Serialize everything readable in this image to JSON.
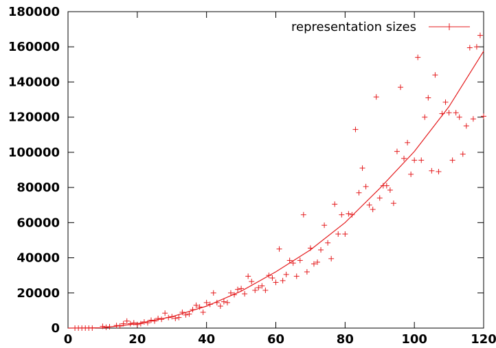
{
  "chart_data": {
    "type": "scatter",
    "title": "",
    "xlabel": "",
    "ylabel": "",
    "xlim": [
      0,
      120
    ],
    "ylim": [
      0,
      180000
    ],
    "x_ticks": [
      0,
      20,
      40,
      60,
      80,
      100,
      120
    ],
    "y_ticks": [
      0,
      20000,
      40000,
      60000,
      80000,
      100000,
      120000,
      140000,
      160000,
      180000
    ],
    "grid": false,
    "legend": {
      "placement": "top-right"
    },
    "color": "#e41a1c",
    "series": [
      {
        "name": "representation sizes",
        "marker": "+",
        "line": "fit",
        "fit_curve": {
          "x": [
            0,
            10,
            20,
            30,
            40,
            50,
            60,
            70,
            80,
            90,
            100,
            110,
            120
          ],
          "y": [
            0,
            200,
            2500,
            6500,
            12500,
            21000,
            32000,
            44500,
            60000,
            79500,
            100500,
            126000,
            157500
          ]
        },
        "points": [
          [
            2,
            0
          ],
          [
            3,
            0
          ],
          [
            4,
            0
          ],
          [
            5,
            0
          ],
          [
            6,
            0
          ],
          [
            7,
            0
          ],
          [
            10,
            1000
          ],
          [
            11,
            500
          ],
          [
            12,
            800
          ],
          [
            14,
            1500
          ],
          [
            15,
            1200
          ],
          [
            16,
            2500
          ],
          [
            17,
            4000
          ],
          [
            18,
            2500
          ],
          [
            19,
            3000
          ],
          [
            20,
            2000
          ],
          [
            21,
            2500
          ],
          [
            22,
            3500
          ],
          [
            23,
            3000
          ],
          [
            24,
            4500
          ],
          [
            25,
            4000
          ],
          [
            26,
            5500
          ],
          [
            27,
            5000
          ],
          [
            28,
            8500
          ],
          [
            29,
            6000
          ],
          [
            30,
            6500
          ],
          [
            31,
            5500
          ],
          [
            32,
            6000
          ],
          [
            33,
            9000
          ],
          [
            34,
            7500
          ],
          [
            35,
            8000
          ],
          [
            36,
            10500
          ],
          [
            37,
            13000
          ],
          [
            38,
            12000
          ],
          [
            39,
            9000
          ],
          [
            40,
            14500
          ],
          [
            41,
            13500
          ],
          [
            42,
            20000
          ],
          [
            43,
            14500
          ],
          [
            44,
            12500
          ],
          [
            45,
            15000
          ],
          [
            46,
            14500
          ],
          [
            47,
            20000
          ],
          [
            48,
            19000
          ],
          [
            49,
            22000
          ],
          [
            50,
            22500
          ],
          [
            51,
            19500
          ],
          [
            52,
            29500
          ],
          [
            53,
            26500
          ],
          [
            54,
            21500
          ],
          [
            55,
            23000
          ],
          [
            56,
            24000
          ],
          [
            57,
            21500
          ],
          [
            58,
            30000
          ],
          [
            59,
            28500
          ],
          [
            60,
            26000
          ],
          [
            61,
            45000
          ],
          [
            62,
            27000
          ],
          [
            63,
            30500
          ],
          [
            64,
            38500
          ],
          [
            65,
            37000
          ],
          [
            66,
            29500
          ],
          [
            67,
            38500
          ],
          [
            68,
            64500
          ],
          [
            69,
            32000
          ],
          [
            70,
            45500
          ],
          [
            71,
            36500
          ],
          [
            72,
            37500
          ],
          [
            73,
            44500
          ],
          [
            74,
            58500
          ],
          [
            75,
            48500
          ],
          [
            76,
            39500
          ],
          [
            77,
            70500
          ],
          [
            78,
            53500
          ],
          [
            79,
            64500
          ],
          [
            80,
            53500
          ],
          [
            81,
            65000
          ],
          [
            82,
            64500
          ],
          [
            83,
            113000
          ],
          [
            84,
            77000
          ],
          [
            85,
            91000
          ],
          [
            86,
            80500
          ],
          [
            87,
            70000
          ],
          [
            88,
            67500
          ],
          [
            89,
            131500
          ],
          [
            90,
            74000
          ],
          [
            91,
            81000
          ],
          [
            92,
            81000
          ],
          [
            93,
            78500
          ],
          [
            94,
            71000
          ],
          [
            95,
            100500
          ],
          [
            96,
            137000
          ],
          [
            97,
            96500
          ],
          [
            98,
            105500
          ],
          [
            99,
            87500
          ],
          [
            100,
            95500
          ],
          [
            101,
            154000
          ],
          [
            102,
            95500
          ],
          [
            103,
            120000
          ],
          [
            104,
            131000
          ],
          [
            105,
            89500
          ],
          [
            106,
            144000
          ],
          [
            107,
            89000
          ],
          [
            108,
            122000
          ],
          [
            109,
            128500
          ],
          [
            110,
            122500
          ],
          [
            111,
            95500
          ],
          [
            112,
            122500
          ],
          [
            113,
            120000
          ],
          [
            114,
            99000
          ],
          [
            115,
            115000
          ],
          [
            116,
            159500
          ],
          [
            117,
            119000
          ],
          [
            118,
            160000
          ],
          [
            119,
            166500
          ],
          [
            120,
            120500
          ]
        ]
      }
    ]
  }
}
